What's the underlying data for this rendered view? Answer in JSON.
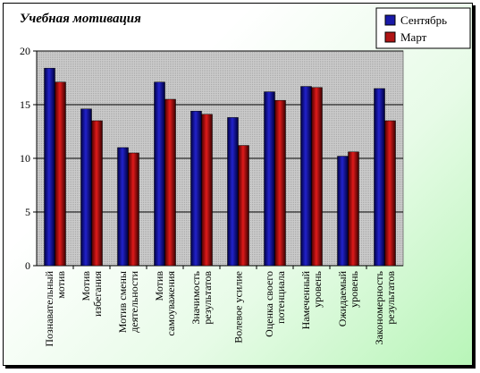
{
  "chart_data": {
    "type": "bar",
    "title": "Учебная мотивация",
    "categories": [
      [
        "Познавательный",
        "мотив"
      ],
      [
        "Мотив",
        "избегания"
      ],
      [
        "Мотив смены",
        "деятельности"
      ],
      [
        "Мотив",
        "самоуважения"
      ],
      [
        "Значимость",
        "результатов"
      ],
      [
        "Волевое усилие"
      ],
      [
        "Оценка своего",
        "потенциала"
      ],
      [
        "Намеченный",
        "уровень"
      ],
      [
        "Ожидаемый",
        "уровень"
      ],
      [
        "Закономерность",
        "результатов"
      ]
    ],
    "series": [
      {
        "name": "Сентябрь",
        "color": "#1a1aa8",
        "values": [
          18.4,
          14.6,
          11.0,
          17.1,
          14.4,
          13.8,
          16.2,
          16.7,
          10.2,
          16.5
        ]
      },
      {
        "name": "Март",
        "color": "#b01515",
        "values": [
          17.1,
          13.5,
          10.5,
          15.5,
          14.1,
          11.2,
          15.4,
          16.6,
          10.6,
          13.5
        ]
      }
    ],
    "yticks": [
      "0",
      "5",
      "10",
      "15",
      "20"
    ],
    "ylim": [
      0,
      20
    ],
    "grid": true,
    "legend_position": "top-right"
  }
}
